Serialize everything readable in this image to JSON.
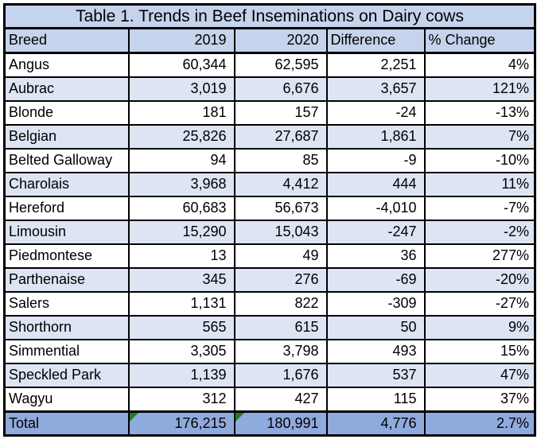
{
  "title": "Table 1. Trends in Beef Inseminations on Dairy cows",
  "columns": [
    "Breed",
    "2019",
    "2020",
    "Difference",
    "% Change"
  ],
  "rows": [
    {
      "breed": "Angus",
      "y2019": "60,344",
      "y2020": "62,595",
      "diff": "2,251",
      "pct": "4%"
    },
    {
      "breed": "Aubrac",
      "y2019": "3,019",
      "y2020": "6,676",
      "diff": "3,657",
      "pct": "121%"
    },
    {
      "breed": "Blonde",
      "y2019": "181",
      "y2020": "157",
      "diff": "-24",
      "pct": "-13%"
    },
    {
      "breed": "Belgian",
      "y2019": "25,826",
      "y2020": "27,687",
      "diff": "1,861",
      "pct": "7%"
    },
    {
      "breed": "Belted Galloway",
      "y2019": "94",
      "y2020": "85",
      "diff": "-9",
      "pct": "-10%"
    },
    {
      "breed": "Charolais",
      "y2019": "3,968",
      "y2020": "4,412",
      "diff": "444",
      "pct": "11%"
    },
    {
      "breed": "Hereford",
      "y2019": "60,683",
      "y2020": "56,673",
      "diff": "-4,010",
      "pct": "-7%"
    },
    {
      "breed": "Limousin",
      "y2019": "15,290",
      "y2020": "15,043",
      "diff": "-247",
      "pct": "-2%"
    },
    {
      "breed": "Piedmontese",
      "y2019": "13",
      "y2020": "49",
      "diff": "36",
      "pct": "277%"
    },
    {
      "breed": "Parthenaise",
      "y2019": "345",
      "y2020": "276",
      "diff": "-69",
      "pct": "-20%"
    },
    {
      "breed": "Salers",
      "y2019": "1,131",
      "y2020": "822",
      "diff": "-309",
      "pct": "-27%"
    },
    {
      "breed": "Shorthorn",
      "y2019": "565",
      "y2020": "615",
      "diff": "50",
      "pct": "9%"
    },
    {
      "breed": "Simmential",
      "y2019": "3,305",
      "y2020": "3,798",
      "diff": "493",
      "pct": "15%"
    },
    {
      "breed": "Speckled Park",
      "y2019": "1,139",
      "y2020": "1,676",
      "diff": "537",
      "pct": "47%"
    },
    {
      "breed": "Wagyu",
      "y2019": "312",
      "y2020": "427",
      "diff": "115",
      "pct": "37%"
    }
  ],
  "total": {
    "breed": "Total",
    "y2019": "176,215",
    "y2020": "180,991",
    "diff": "4,776",
    "pct": "2.7%"
  },
  "colors": {
    "header_bg": "#c6d3ec",
    "alt_row_bg": "#dde5f4",
    "total_row_bg": "#8faadc",
    "border": "#000000",
    "error_indicator_green": "#1e7d1e"
  },
  "chart_data": {
    "type": "table",
    "title": "Table 1. Trends in Beef Inseminations on Dairy cows",
    "columns": [
      "Breed",
      "2019",
      "2020",
      "Difference",
      "% Change"
    ],
    "rows": [
      [
        "Angus",
        60344,
        62595,
        2251,
        "4%"
      ],
      [
        "Aubrac",
        3019,
        6676,
        3657,
        "121%"
      ],
      [
        "Blonde",
        181,
        157,
        -24,
        "-13%"
      ],
      [
        "Belgian",
        25826,
        27687,
        1861,
        "7%"
      ],
      [
        "Belted Galloway",
        94,
        85,
        -9,
        "-10%"
      ],
      [
        "Charolais",
        3968,
        4412,
        444,
        "11%"
      ],
      [
        "Hereford",
        60683,
        56673,
        -4010,
        "-7%"
      ],
      [
        "Limousin",
        15290,
        15043,
        -247,
        "-2%"
      ],
      [
        "Piedmontese",
        13,
        49,
        36,
        "277%"
      ],
      [
        "Parthenaise",
        345,
        276,
        -69,
        "-20%"
      ],
      [
        "Salers",
        1131,
        822,
        -309,
        "-27%"
      ],
      [
        "Shorthorn",
        565,
        615,
        50,
        "9%"
      ],
      [
        "Simmential",
        3305,
        3798,
        493,
        "15%"
      ],
      [
        "Speckled Park",
        1139,
        1676,
        537,
        "47%"
      ],
      [
        "Wagyu",
        312,
        427,
        115,
        "37%"
      ]
    ],
    "total_row": [
      "Total",
      176215,
      180991,
      4776,
      "2.7%"
    ]
  }
}
